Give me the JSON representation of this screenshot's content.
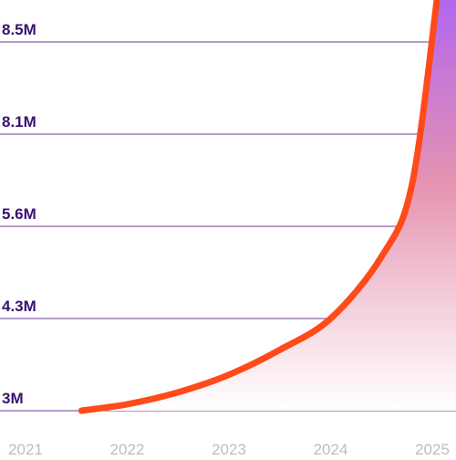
{
  "chart_data": {
    "type": "area",
    "title": "",
    "xlabel": "",
    "ylabel": "",
    "x_tick_labels": [
      "2021",
      "2022",
      "2023",
      "2024",
      "2025"
    ],
    "y_tick_labels": [
      "3M",
      "4.3M",
      "5.6M",
      "8.1M",
      "8.5M"
    ],
    "x": [
      2021.55,
      2022,
      2022.5,
      2023,
      2023.5,
      2024,
      2024.5,
      2024.8,
      2025.05
    ],
    "y_band_position": [
      0,
      0.07,
      0.2,
      0.39,
      0.66,
      1.0,
      1.67,
      2.45,
      4.5
    ],
    "grid": true,
    "legend": "none",
    "colors": {
      "line": "#ff4a1a",
      "fill_top": "#b066f0",
      "fill_bottom": "#ffffff",
      "gridline": "#6b3d93",
      "ytick_text": "#3a1270",
      "xtick_text": "#bdbdbd"
    }
  }
}
